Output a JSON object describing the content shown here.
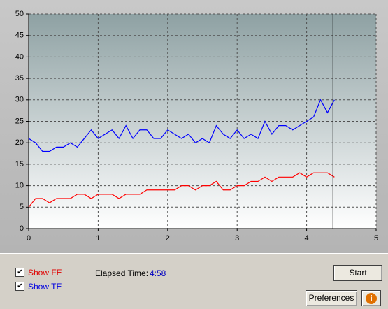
{
  "chart_data": {
    "type": "line",
    "x": [
      0,
      0.1,
      0.2,
      0.3,
      0.4,
      0.5,
      0.6,
      0.7,
      0.8,
      0.9,
      1.0,
      1.1,
      1.2,
      1.3,
      1.4,
      1.5,
      1.6,
      1.7,
      1.8,
      1.9,
      2.0,
      2.1,
      2.2,
      2.3,
      2.4,
      2.5,
      2.6,
      2.7,
      2.8,
      2.9,
      3.0,
      3.1,
      3.2,
      3.3,
      3.4,
      3.5,
      3.6,
      3.7,
      3.8,
      3.9,
      4.0,
      4.1,
      4.2,
      4.3,
      4.4
    ],
    "series": [
      {
        "name": "TE",
        "color": "#0000ff",
        "values": [
          21,
          20,
          18,
          18,
          19,
          19,
          20,
          19,
          21,
          23,
          21,
          22,
          23,
          21,
          24,
          21,
          23,
          23,
          21,
          21,
          23,
          22,
          21,
          22,
          20,
          21,
          20,
          24,
          22,
          21,
          23,
          21,
          22,
          21,
          25,
          22,
          24,
          24,
          23,
          24,
          25,
          26,
          30,
          27,
          30
        ]
      },
      {
        "name": "FE",
        "color": "#ff0000",
        "values": [
          5,
          7,
          7,
          6,
          7,
          7,
          7,
          8,
          8,
          7,
          8,
          8,
          8,
          7,
          8,
          8,
          8,
          9,
          9,
          9,
          9,
          9,
          10,
          10,
          9,
          10,
          10,
          11,
          9,
          9,
          10,
          10,
          11,
          11,
          12,
          11,
          12,
          12,
          12,
          13,
          12,
          13,
          13,
          13,
          12
        ]
      }
    ],
    "marker_x": 4.38,
    "xlim": [
      0,
      5
    ],
    "xticks": [
      0,
      1,
      2,
      3,
      4,
      5
    ],
    "ylim": [
      0,
      50
    ],
    "yticks": [
      0,
      5,
      10,
      15,
      20,
      25,
      30,
      35,
      40,
      45,
      50
    ],
    "grid": true
  },
  "controls": {
    "show_fe": "Show FE",
    "show_te": "Show TE",
    "elapsed_label": "Elapsed Time:",
    "elapsed_value": "4:58",
    "start": "Start",
    "preferences": "Preferences",
    "info": "i"
  }
}
